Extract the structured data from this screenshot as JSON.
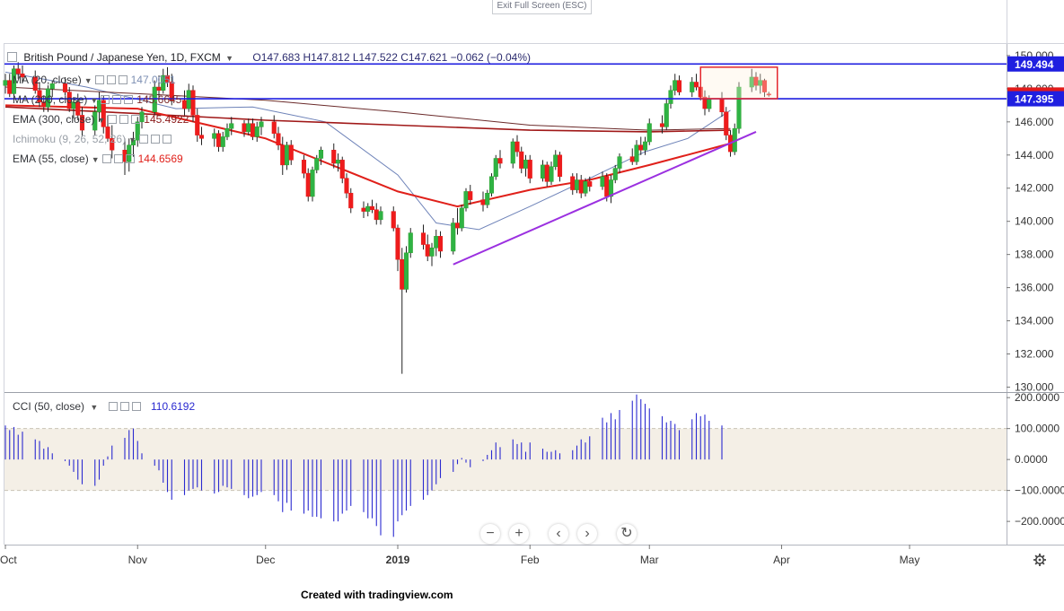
{
  "header": {
    "exit_fullscreen": "Exit Full Screen (ESC)",
    "symbol": "British Pound / Japanese Yen, 1D, FXCM",
    "ohlc": "O147.683  H147.812  L147.522  C147.621  −0.062 (−0.04%)"
  },
  "indicators": [
    {
      "label": "MA (20, close)",
      "value": "147.0051",
      "color": "#7d8fb3"
    },
    {
      "label": "MA (200, close)",
      "value": "145.6645",
      "color": "#7a2b2b"
    },
    {
      "label": "EMA (300, close)",
      "value": "145.4922",
      "color": "#8b1a1a"
    },
    {
      "label": "Ichimoku (9, 26, 52, 26)",
      "value": "",
      "color": "#9aa0a8"
    },
    {
      "label": "EMA (55, close)",
      "value": "144.6569",
      "color": "#e0201a"
    }
  ],
  "cci": {
    "label": "CCI (50, close)",
    "value": "110.6192",
    "color": "#2a2ad0"
  },
  "footer": {
    "credit": "Created with tradingview.com"
  },
  "chart_data": {
    "type": "candlestick",
    "title": "British Pound / Japanese Yen, 1D, FXCM",
    "price_axis": {
      "ylim": [
        129.7,
        150.7
      ],
      "ticks": [
        "130.000",
        "132.000",
        "134.000",
        "136.000",
        "138.000",
        "140.000",
        "142.000",
        "144.000",
        "146.000",
        "148.000",
        "150.000"
      ]
    },
    "time_axis": {
      "labels": [
        "Oct",
        "Nov",
        "Dec",
        "2019",
        "Feb",
        "Mar",
        "Apr",
        "May"
      ],
      "bold": "2019"
    },
    "price_labels": [
      {
        "value": 149.494,
        "text": "149.494",
        "style": "line-blue"
      },
      {
        "value": 147.621,
        "text": "147.621",
        "style": "last-red"
      },
      {
        "value": 147.395,
        "text": "147.395",
        "style": "line-blue"
      }
    ],
    "horizontal_lines": [
      149.494,
      147.395
    ],
    "trend_line": {
      "from": {
        "date": "2019-01-14",
        "price": 137.4
      },
      "to": {
        "date": "2019-03-26",
        "price": 145.4
      },
      "color": "#9b30e0"
    },
    "highlight_box": {
      "from_date": "2019-03-13",
      "to_date": "2019-03-31",
      "top": 149.3,
      "bottom": 147.4
    },
    "candles": {
      "start_date": "2018-10-01",
      "ohlc": [
        [
          148.2,
          148.9,
          147.7,
          148.5
        ],
        [
          148.5,
          148.9,
          147.5,
          147.7
        ],
        [
          147.7,
          149.4,
          147.4,
          149.2
        ],
        [
          149.2,
          149.6,
          148.6,
          148.9
        ],
        [
          148.9,
          149.4,
          148.4,
          148.7
        ],
        [
          148.7,
          149.1,
          147.7,
          147.9
        ],
        [
          147.9,
          148.4,
          146.9,
          147.2
        ],
        [
          147.2,
          147.6,
          146.6,
          146.9
        ],
        [
          146.9,
          148.2,
          146.6,
          148.0
        ],
        [
          148.0,
          148.5,
          147.5,
          148.3
        ],
        [
          148.3,
          148.7,
          147.6,
          147.8
        ],
        [
          147.8,
          148.1,
          146.6,
          146.8
        ],
        [
          146.8,
          147.5,
          146.2,
          147.2
        ],
        [
          147.2,
          147.7,
          146.1,
          146.4
        ],
        [
          146.4,
          146.9,
          145.1,
          145.5
        ],
        [
          145.5,
          147.0,
          145.2,
          146.6
        ],
        [
          146.6,
          147.8,
          146.0,
          147.3
        ],
        [
          147.3,
          147.6,
          145.3,
          145.7
        ],
        [
          145.7,
          146.4,
          144.8,
          145.0
        ],
        [
          145.0,
          145.8,
          143.8,
          144.3
        ],
        [
          144.3,
          145.0,
          142.8,
          143.6
        ],
        [
          143.6,
          145.0,
          143.0,
          144.6
        ],
        [
          144.6,
          145.4,
          143.9,
          144.9
        ],
        [
          144.9,
          146.3,
          144.5,
          146.0
        ],
        [
          146.0,
          146.9,
          145.6,
          146.6
        ],
        [
          146.6,
          148.5,
          146.4,
          148.1
        ],
        [
          148.1,
          148.8,
          147.4,
          147.9
        ],
        [
          147.9,
          149.2,
          147.7,
          148.8
        ],
        [
          148.8,
          149.3,
          148.1,
          148.4
        ],
        [
          148.4,
          148.9,
          147.0,
          147.3
        ],
        [
          147.3,
          147.9,
          146.4,
          146.8
        ],
        [
          146.8,
          148.3,
          146.6,
          147.9
        ],
        [
          147.9,
          148.2,
          146.0,
          146.4
        ],
        [
          146.4,
          146.8,
          144.8,
          145.2
        ],
        [
          145.2,
          145.7,
          144.6,
          145.0
        ],
        [
          145.0,
          145.6,
          144.5,
          145.3
        ],
        [
          145.3,
          145.5,
          144.2,
          144.5
        ],
        [
          144.5,
          145.4,
          144.2,
          145.1
        ],
        [
          145.1,
          145.9,
          144.9,
          145.6
        ],
        [
          145.6,
          146.3,
          145.2,
          145.9
        ],
        [
          145.9,
          146.1,
          145.1,
          145.4
        ],
        [
          145.4,
          146.2,
          145.2,
          145.9
        ],
        [
          145.9,
          146.2,
          144.9,
          145.1
        ],
        [
          145.1,
          146.0,
          144.8,
          145.7
        ],
        [
          145.7,
          146.3,
          145.2,
          146.0
        ],
        [
          146.0,
          146.4,
          145.0,
          145.3
        ],
        [
          145.3,
          145.7,
          144.3,
          144.6
        ],
        [
          144.6,
          145.1,
          142.8,
          143.4
        ],
        [
          143.4,
          144.8,
          143.1,
          144.6
        ],
        [
          144.6,
          144.9,
          143.4,
          143.7
        ],
        [
          143.7,
          144.0,
          142.6,
          142.9
        ],
        [
          142.9,
          143.2,
          141.2,
          141.5
        ],
        [
          141.5,
          143.3,
          141.2,
          143.1
        ],
        [
          143.1,
          144.0,
          142.9,
          143.8
        ],
        [
          143.8,
          144.5,
          143.4,
          144.3
        ],
        [
          144.3,
          144.7,
          143.2,
          143.5
        ],
        [
          143.5,
          144.1,
          143.0,
          143.7
        ],
        [
          143.7,
          143.9,
          142.3,
          142.6
        ],
        [
          142.6,
          142.9,
          141.4,
          141.7
        ],
        [
          141.7,
          142.0,
          140.5,
          140.8
        ],
        [
          140.8,
          141.2,
          140.2,
          140.6
        ],
        [
          140.6,
          141.1,
          140.3,
          140.9
        ],
        [
          140.9,
          141.3,
          140.5,
          140.7
        ],
        [
          140.7,
          141.1,
          139.8,
          140.1
        ],
        [
          140.1,
          140.9,
          139.8,
          140.6
        ],
        [
          140.6,
          140.9,
          139.4,
          139.6
        ],
        [
          139.6,
          139.8,
          137.0,
          137.7
        ],
        [
          137.7,
          138.4,
          130.8,
          135.9
        ],
        [
          135.9,
          138.5,
          135.7,
          138.1
        ],
        [
          138.1,
          139.6,
          137.8,
          139.3
        ],
        [
          139.3,
          139.8,
          138.3,
          138.6
        ],
        [
          138.6,
          139.2,
          137.6,
          137.9
        ],
        [
          137.9,
          138.7,
          137.3,
          138.4
        ],
        [
          138.4,
          139.5,
          137.9,
          139.1
        ],
        [
          139.1,
          139.4,
          137.8,
          138.2
        ],
        [
          138.2,
          140.2,
          138.0,
          139.9
        ],
        [
          139.9,
          140.8,
          139.2,
          139.6
        ],
        [
          139.6,
          141.0,
          139.4,
          140.8
        ],
        [
          140.8,
          142.0,
          140.6,
          141.8
        ],
        [
          141.8,
          142.2,
          141.0,
          141.3
        ],
        [
          141.3,
          141.8,
          140.6,
          141.0
        ],
        [
          141.0,
          141.9,
          140.8,
          141.7
        ],
        [
          141.7,
          142.9,
          141.5,
          142.7
        ],
        [
          142.7,
          144.0,
          142.5,
          143.8
        ],
        [
          143.8,
          144.3,
          143.2,
          143.5
        ],
        [
          143.5,
          145.0,
          143.2,
          144.8
        ],
        [
          144.8,
          145.2,
          143.9,
          144.2
        ],
        [
          144.2,
          144.5,
          142.9,
          143.2
        ],
        [
          143.2,
          144.0,
          142.7,
          143.7
        ],
        [
          143.7,
          144.0,
          142.3,
          142.6
        ],
        [
          142.6,
          143.7,
          142.4,
          143.4
        ],
        [
          143.4,
          143.6,
          142.1,
          142.4
        ],
        [
          142.4,
          143.6,
          142.2,
          143.3
        ],
        [
          143.3,
          144.3,
          143.1,
          144.0
        ],
        [
          144.0,
          144.2,
          142.4,
          142.7
        ],
        [
          142.7,
          142.9,
          141.6,
          141.9
        ],
        [
          141.9,
          142.9,
          141.7,
          142.5
        ],
        [
          142.5,
          142.8,
          141.4,
          141.7
        ],
        [
          141.7,
          142.6,
          141.5,
          142.4
        ],
        [
          142.4,
          142.7,
          141.8,
          142.1
        ],
        [
          142.1,
          143.0,
          141.9,
          142.7
        ],
        [
          142.7,
          142.9,
          141.2,
          141.5
        ],
        [
          141.5,
          142.8,
          141.1,
          142.5
        ],
        [
          142.5,
          143.4,
          142.3,
          143.2
        ],
        [
          143.2,
          144.1,
          142.9,
          143.9
        ],
        [
          143.9,
          144.4,
          143.4,
          143.6
        ],
        [
          143.6,
          144.9,
          143.4,
          144.6
        ],
        [
          144.6,
          145.1,
          144.0,
          144.3
        ],
        [
          144.3,
          145.1,
          144.0,
          144.8
        ],
        [
          144.8,
          146.2,
          144.6,
          145.9
        ],
        [
          145.9,
          146.4,
          145.3,
          145.7
        ],
        [
          145.7,
          147.4,
          145.5,
          147.1
        ],
        [
          147.1,
          148.2,
          146.8,
          147.9
        ],
        [
          147.9,
          148.9,
          147.6,
          148.5
        ],
        [
          148.5,
          148.8,
          147.6,
          147.8
        ],
        [
          147.8,
          148.7,
          147.5,
          148.4
        ],
        [
          148.4,
          148.9,
          147.9,
          148.1
        ],
        [
          148.1,
          148.4,
          147.3,
          147.5
        ],
        [
          147.5,
          147.9,
          146.4,
          146.8
        ],
        [
          146.8,
          147.6,
          146.6,
          147.4
        ],
        [
          147.4,
          147.8,
          146.3,
          146.6
        ],
        [
          146.6,
          146.9,
          144.9,
          145.2
        ],
        [
          145.2,
          145.5,
          143.9,
          144.2
        ],
        [
          144.2,
          145.9,
          144.0,
          145.6
        ],
        [
          145.6,
          148.4,
          145.3,
          148.1
        ],
        [
          148.1,
          149.2,
          147.8,
          148.7
        ],
        [
          148.7,
          149.0,
          147.9,
          148.2
        ],
        [
          148.2,
          148.9,
          147.7,
          148.5
        ],
        [
          148.5,
          148.6,
          147.5,
          147.8
        ],
        [
          147.683,
          147.812,
          147.522,
          147.621
        ]
      ]
    },
    "moving_averages": [
      {
        "name": "MA (20, close)",
        "color": "#6d82b8",
        "points": [
          [
            "2018-10-01",
            149.0
          ],
          [
            "2018-10-20",
            148.1
          ],
          [
            "2018-11-10",
            146.8
          ],
          [
            "2018-11-28",
            146.9
          ],
          [
            "2018-12-15",
            146.0
          ],
          [
            "2019-01-01",
            142.8
          ],
          [
            "2019-01-10",
            139.9
          ],
          [
            "2019-01-20",
            139.5
          ],
          [
            "2019-02-01",
            140.9
          ],
          [
            "2019-02-15",
            142.6
          ],
          [
            "2019-02-28",
            144.2
          ],
          [
            "2019-03-10",
            145.0
          ],
          [
            "2019-03-20",
            146.7
          ]
        ]
      },
      {
        "name": "MA (200, close)",
        "color": "#6a2a2a",
        "points": [
          [
            "2018-10-01",
            148.1
          ],
          [
            "2018-11-01",
            147.7
          ],
          [
            "2018-12-01",
            147.3
          ],
          [
            "2019-01-01",
            146.6
          ],
          [
            "2019-02-01",
            145.8
          ],
          [
            "2019-03-01",
            145.5
          ],
          [
            "2019-03-20",
            145.6
          ]
        ]
      },
      {
        "name": "EMA (300, close)",
        "color": "#a01818",
        "points": [
          [
            "2018-10-01",
            146.9
          ],
          [
            "2018-11-01",
            146.5
          ],
          [
            "2018-12-01",
            146.1
          ],
          [
            "2019-01-01",
            145.8
          ],
          [
            "2019-02-01",
            145.5
          ],
          [
            "2019-03-01",
            145.4
          ],
          [
            "2019-03-20",
            145.5
          ]
        ]
      },
      {
        "name": "EMA (55, close)",
        "color": "#e0201a",
        "points": [
          [
            "2018-10-01",
            147.0
          ],
          [
            "2018-11-01",
            146.8
          ],
          [
            "2018-12-01",
            145.0
          ],
          [
            "2019-01-01",
            141.8
          ],
          [
            "2019-01-15",
            140.9
          ],
          [
            "2019-02-01",
            141.9
          ],
          [
            "2019-02-15",
            142.5
          ],
          [
            "2019-03-01",
            143.4
          ],
          [
            "2019-03-20",
            144.7
          ]
        ]
      }
    ],
    "cci_axis": {
      "ylim": [
        -275,
        215
      ],
      "ticks": [
        "200.0000",
        "100.0000",
        "0.0000",
        "−100.0000",
        "−200.0000"
      ],
      "band": [
        -100,
        100
      ]
    },
    "cci_values": [
      110,
      95,
      105,
      80,
      90,
      65,
      60,
      35,
      40,
      20,
      -5,
      -20,
      -40,
      -65,
      -80,
      -85,
      -65,
      -20,
      10,
      45,
      70,
      95,
      100,
      60,
      20,
      -20,
      -35,
      -75,
      -105,
      -130,
      -115,
      -100,
      -95,
      -90,
      -100,
      -110,
      -105,
      -85,
      -90,
      -95,
      -115,
      -125,
      -120,
      -115,
      -105,
      -115,
      -135,
      -170,
      -140,
      -165,
      -175,
      -165,
      -185,
      -185,
      -190,
      -200,
      -200,
      -175,
      -165,
      -150,
      -170,
      -190,
      -190,
      -215,
      -245,
      -250,
      -200,
      -180,
      -165,
      -150,
      -130,
      -115,
      -100,
      -80,
      -60,
      -40,
      -15,
      5,
      -10,
      -25,
      -5,
      15,
      30,
      55,
      40,
      65,
      50,
      55,
      25,
      55,
      35,
      25,
      25,
      30,
      20,
      30,
      45,
      65,
      55,
      75,
      135,
      120,
      150,
      130,
      160,
      190,
      210,
      195,
      180,
      165,
      140,
      120,
      125,
      115,
      95,
      130,
      150,
      140,
      145,
      125,
      110
    ]
  }
}
